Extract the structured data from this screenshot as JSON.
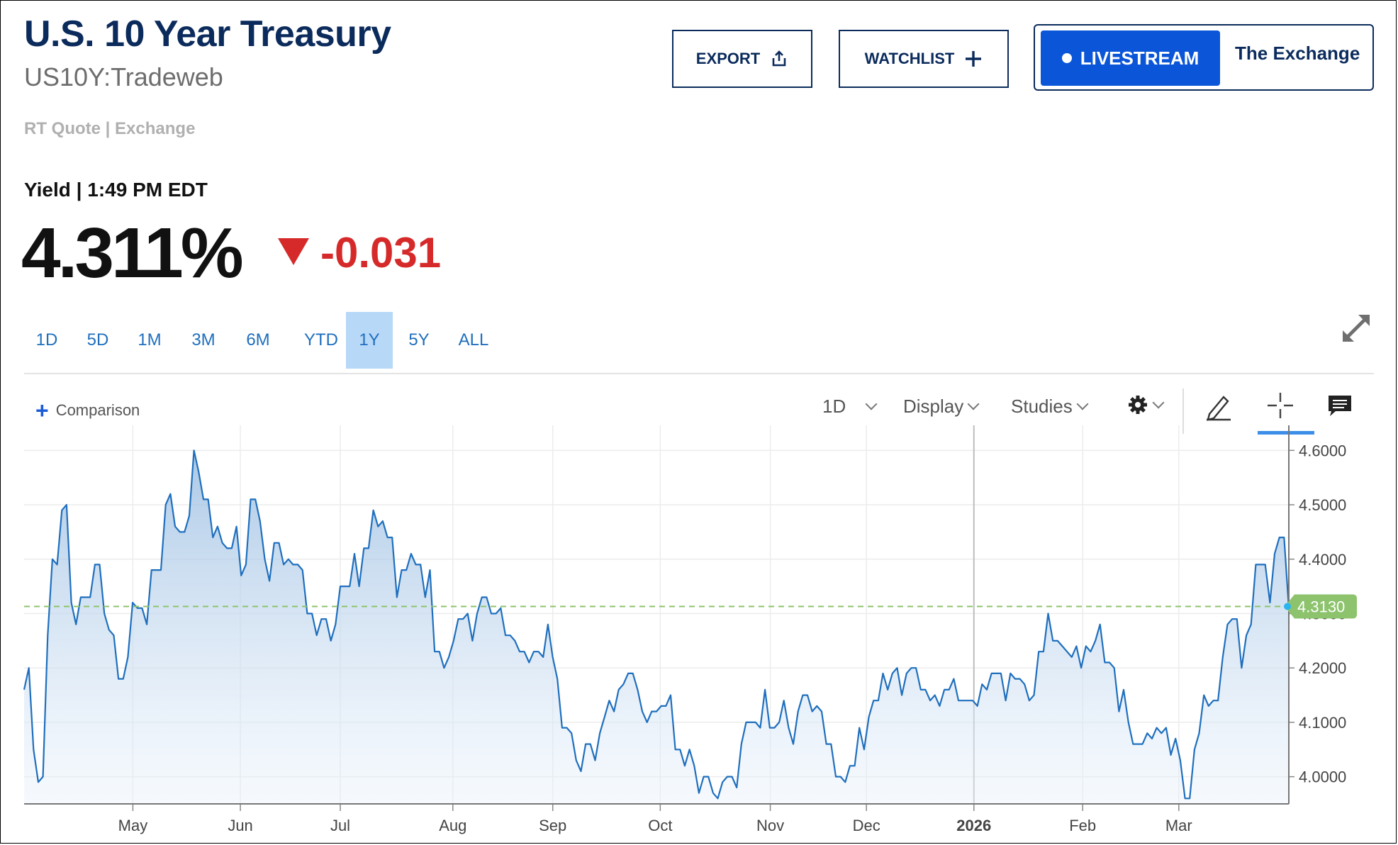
{
  "header": {
    "title": "U.S. 10 Year Treasury",
    "symbol": "US10Y:Tradeweb",
    "quote_source": "RT Quote | Exchange",
    "yield_label": "Yield | 1:49 PM EDT",
    "price": "4.311%",
    "change": "-0.031"
  },
  "actions": {
    "export_label": "EXPORT",
    "watchlist_label": "WATCHLIST",
    "livestream_label": "LIVESTREAM",
    "exchange_label": "The Exchange"
  },
  "ranges": [
    "1D",
    "5D",
    "1M",
    "3M",
    "6M",
    "YTD",
    "1Y",
    "5Y",
    "ALL"
  ],
  "active_range": "1Y",
  "toolbar": {
    "comparison_label": "Comparison",
    "interval_label": "1D",
    "display_label": "Display",
    "studies_label": "Studies"
  },
  "icons": [
    "upload-icon",
    "plus-icon",
    "expand-icon",
    "gear-icon",
    "pencil-icon",
    "crosshair-icon",
    "comment-icon"
  ],
  "colors": {
    "title": "#0b2b5c",
    "negative": "#d62a2a",
    "accent": "#0a55d8",
    "line": "#1f6fbd",
    "last_price_badge": "#8cc36c"
  },
  "chart_data": {
    "type": "area",
    "x_ticks": [
      "May",
      "Jun",
      "Jul",
      "Aug",
      "Sep",
      "Oct",
      "Nov",
      "Dec",
      "2026",
      "Feb",
      "Mar"
    ],
    "ylim": [
      3.95,
      4.62
    ],
    "y_ticks": [
      "4.6000",
      "4.5000",
      "4.4000",
      "4.3000",
      "4.2000",
      "4.1000",
      "4.0000"
    ],
    "last_price": "4.3130",
    "grid": true,
    "values": [
      4.16,
      4.2,
      4.05,
      3.99,
      4.0,
      4.26,
      4.4,
      4.39,
      4.49,
      4.5,
      4.32,
      4.28,
      4.33,
      4.33,
      4.33,
      4.39,
      4.39,
      4.3,
      4.27,
      4.26,
      4.18,
      4.18,
      4.22,
      4.32,
      4.31,
      4.31,
      4.28,
      4.38,
      4.38,
      4.38,
      4.5,
      4.52,
      4.46,
      4.45,
      4.45,
      4.48,
      4.6,
      4.56,
      4.51,
      4.51,
      4.44,
      4.46,
      4.43,
      4.42,
      4.42,
      4.46,
      4.37,
      4.39,
      4.51,
      4.51,
      4.47,
      4.4,
      4.36,
      4.43,
      4.43,
      4.39,
      4.4,
      4.39,
      4.39,
      4.38,
      4.3,
      4.3,
      4.26,
      4.29,
      4.29,
      4.25,
      4.28,
      4.35,
      4.35,
      4.35,
      4.41,
      4.35,
      4.42,
      4.42,
      4.49,
      4.46,
      4.47,
      4.44,
      4.44,
      4.33,
      4.38,
      4.38,
      4.41,
      4.39,
      4.39,
      4.33,
      4.38,
      4.23,
      4.23,
      4.2,
      4.22,
      4.25,
      4.29,
      4.29,
      4.3,
      4.25,
      4.3,
      4.33,
      4.33,
      4.3,
      4.3,
      4.31,
      4.26,
      4.26,
      4.25,
      4.23,
      4.23,
      4.21,
      4.23,
      4.23,
      4.22,
      4.28,
      4.22,
      4.18,
      4.09,
      4.09,
      4.08,
      4.03,
      4.01,
      4.06,
      4.06,
      4.03,
      4.08,
      4.11,
      4.14,
      4.12,
      4.16,
      4.17,
      4.19,
      4.19,
      4.16,
      4.12,
      4.1,
      4.12,
      4.12,
      4.13,
      4.13,
      4.15,
      4.05,
      4.05,
      4.02,
      4.05,
      4.02,
      3.97,
      4.0,
      4.0,
      3.97,
      3.96,
      3.99,
      4.0,
      4.0,
      3.98,
      4.06,
      4.1,
      4.1,
      4.1,
      4.09,
      4.16,
      4.09,
      4.09,
      4.1,
      4.14,
      4.09,
      4.06,
      4.12,
      4.15,
      4.15,
      4.12,
      4.13,
      4.12,
      4.06,
      4.06,
      4.0,
      4.0,
      3.99,
      4.02,
      4.02,
      4.09,
      4.05,
      4.11,
      4.14,
      4.14,
      4.19,
      4.16,
      4.19,
      4.2,
      4.15,
      4.19,
      4.2,
      4.2,
      4.16,
      4.16,
      4.14,
      4.15,
      4.13,
      4.16,
      4.16,
      4.18,
      4.14,
      4.14,
      4.14,
      4.14,
      4.13,
      4.17,
      4.16,
      4.19,
      4.19,
      4.19,
      4.14,
      4.19,
      4.18,
      4.18,
      4.17,
      4.14,
      4.15,
      4.23,
      4.23,
      4.3,
      4.25,
      4.25,
      4.24,
      4.23,
      4.22,
      4.24,
      4.2,
      4.24,
      4.23,
      4.25,
      4.28,
      4.21,
      4.21,
      4.2,
      4.12,
      4.16,
      4.1,
      4.06,
      4.06,
      4.06,
      4.08,
      4.07,
      4.09,
      4.08,
      4.09,
      4.04,
      4.07,
      4.03,
      3.96,
      3.96,
      4.05,
      4.08,
      4.15,
      4.13,
      4.14,
      4.14,
      4.22,
      4.28,
      4.29,
      4.29,
      4.2,
      4.26,
      4.28,
      4.39,
      4.39,
      4.39,
      4.32,
      4.41,
      4.44,
      4.44,
      4.31
    ]
  }
}
